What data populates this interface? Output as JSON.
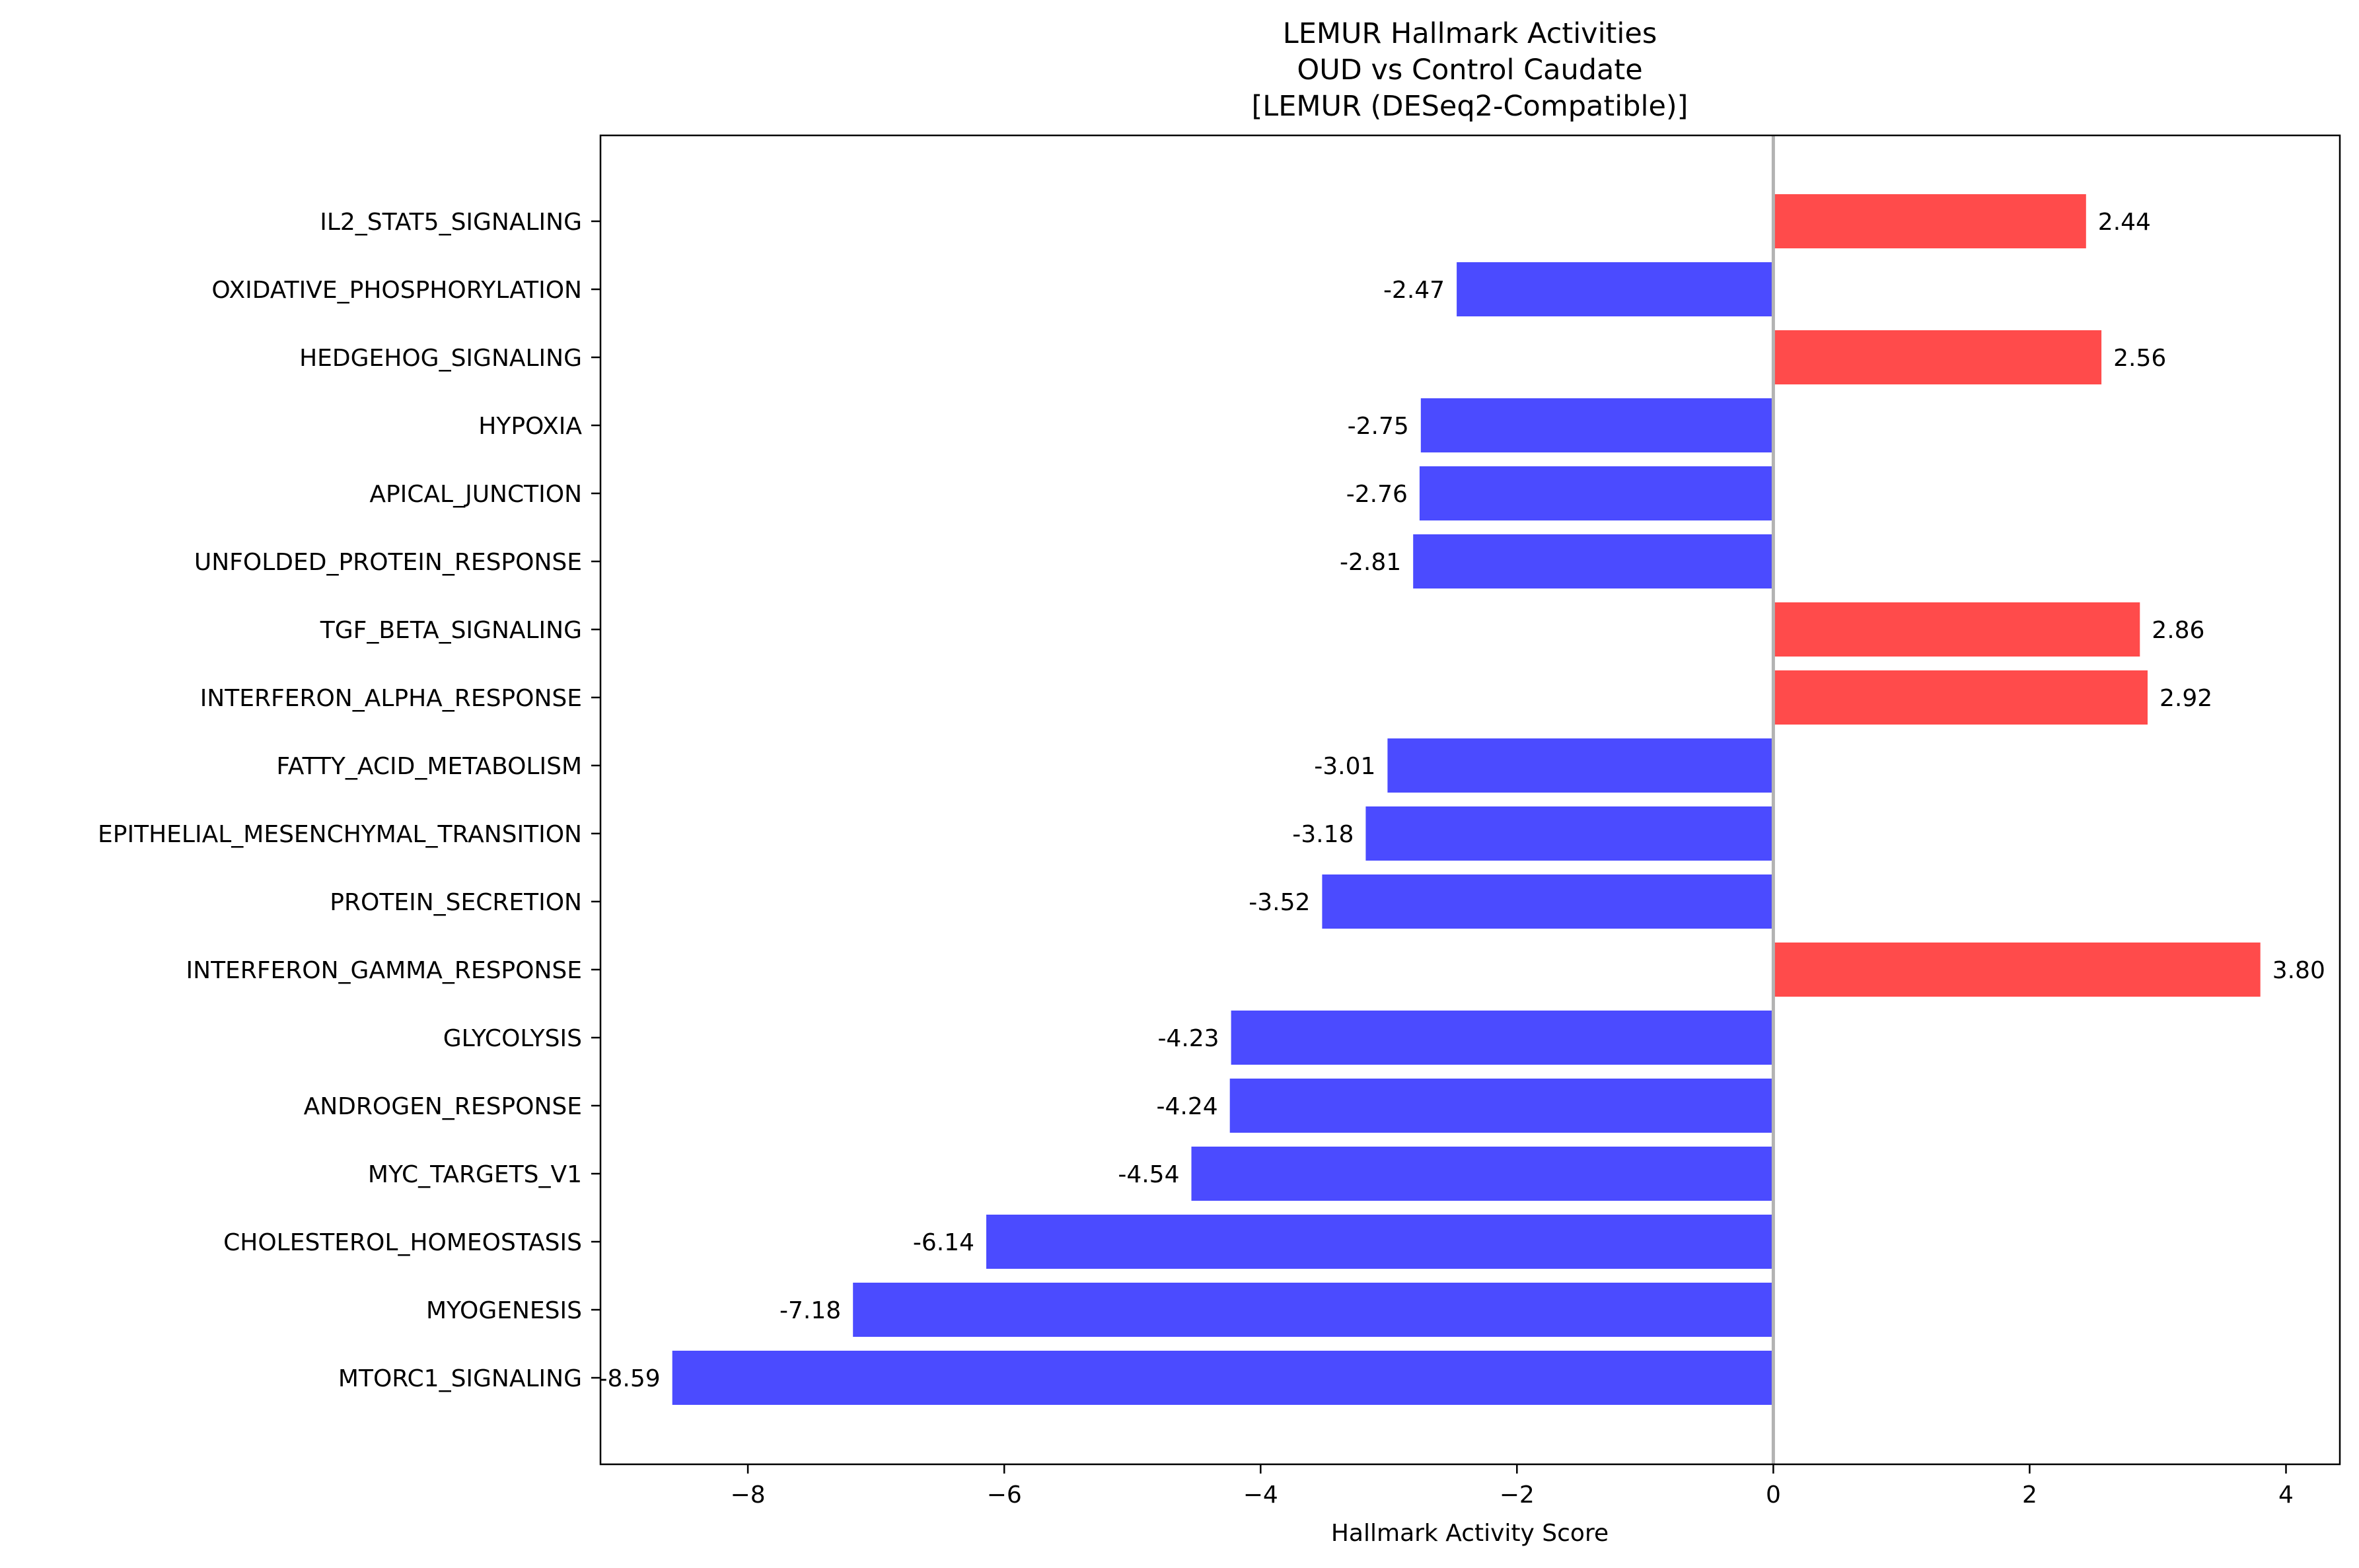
{
  "chart_data": {
    "type": "bar",
    "orientation": "horizontal",
    "title_lines": [
      "LEMUR Hallmark Activities",
      "OUD vs Control Caudate",
      "[LEMUR (DESeq2-Compatible)]"
    ],
    "xlabel": "Hallmark Activity Score",
    "ylabel": "",
    "xlim": [
      -9.15,
      4.42
    ],
    "xticks": [
      -8,
      -6,
      -4,
      -2,
      0,
      2,
      4
    ],
    "xtick_labels": [
      "−8",
      "−6",
      "−4",
      "−2",
      "0",
      "2",
      "4"
    ],
    "grid": false,
    "reference_line": 0,
    "colors": {
      "positive": "#ff4b4b",
      "negative": "#4b4bff",
      "zero_line": "#b3b3b3"
    },
    "categories": [
      "IL2_STAT5_SIGNALING",
      "OXIDATIVE_PHOSPHORYLATION",
      "HEDGEHOG_SIGNALING",
      "HYPOXIA",
      "APICAL_JUNCTION",
      "UNFOLDED_PROTEIN_RESPONSE",
      "TGF_BETA_SIGNALING",
      "INTERFERON_ALPHA_RESPONSE",
      "FATTY_ACID_METABOLISM",
      "EPITHELIAL_MESENCHYMAL_TRANSITION",
      "PROTEIN_SECRETION",
      "INTERFERON_GAMMA_RESPONSE",
      "GLYCOLYSIS",
      "ANDROGEN_RESPONSE",
      "MYC_TARGETS_V1",
      "CHOLESTEROL_HOMEOSTASIS",
      "MYOGENESIS",
      "MTORC1_SIGNALING"
    ],
    "values": [
      2.44,
      -2.47,
      2.56,
      -2.75,
      -2.76,
      -2.81,
      2.86,
      2.92,
      -3.01,
      -3.18,
      -3.52,
      3.8,
      -4.23,
      -4.24,
      -4.54,
      -6.14,
      -7.18,
      -8.59
    ],
    "value_labels": [
      "2.44",
      "-2.47",
      "2.56",
      "-2.75",
      "-2.76",
      "-2.81",
      "2.86",
      "2.92",
      "-3.01",
      "-3.18",
      "-3.52",
      "3.80",
      "-4.23",
      "-4.24",
      "-4.54",
      "-6.14",
      "-7.18",
      "-8.59"
    ]
  }
}
